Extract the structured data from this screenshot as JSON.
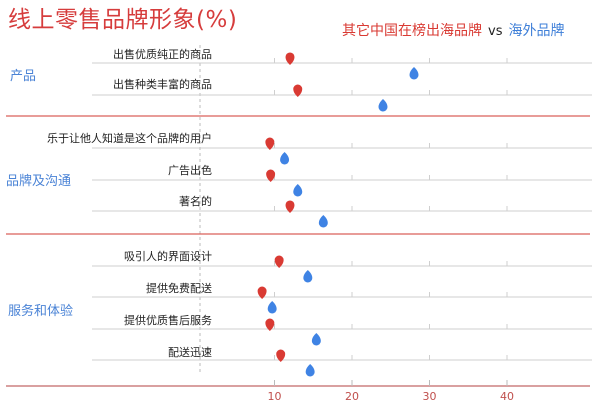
{
  "title": "线上零售品牌形象(%)",
  "legend": {
    "series_a": "其它中国在榜出海品牌",
    "vs": "vs",
    "series_b": "海外品牌"
  },
  "colors": {
    "series_a": "#d93a33",
    "series_b": "#3f83e4",
    "category_label": "#4a83d6",
    "section_line": "#d9605a",
    "grid": "#cfcfcf",
    "axis": "#d9a0a0",
    "tick_label": "#c0504d"
  },
  "categories": [
    {
      "label": "产品",
      "rows": [
        0,
        1
      ]
    },
    {
      "label": "品牌及沟通",
      "rows": [
        2,
        3,
        4
      ]
    },
    {
      "label": "服务和体验",
      "rows": [
        5,
        6,
        7,
        8
      ]
    }
  ],
  "chart_data": {
    "type": "scatter",
    "title": "线上零售品牌形象(%)",
    "categories": [
      "出售优质纯正的商品",
      "出售种类丰富的商品",
      "乐于让他人知道是这个品牌的用户",
      "广告出色",
      "著名的",
      "吸引人的界面设计",
      "提供免费配送",
      "提供优质售后服务",
      "配送迅速"
    ],
    "groups": [
      {
        "name": "产品",
        "categories": [
          "出售优质纯正的商品",
          "出售种类丰富的商品"
        ]
      },
      {
        "name": "品牌及沟通",
        "categories": [
          "乐于让他人知道是这个品牌的用户",
          "广告出色",
          "著名的"
        ]
      },
      {
        "name": "服务和体验",
        "categories": [
          "吸引人的界面设计",
          "提供免费配送",
          "提供优质售后服务",
          "配送迅速"
        ]
      }
    ],
    "series": [
      {
        "name": "其它中国在榜出海品牌",
        "color": "#d93a33",
        "values": [
          12,
          13,
          9.4,
          9.5,
          12,
          10.6,
          8.4,
          9.4,
          10.8
        ]
      },
      {
        "name": "海外品牌",
        "color": "#3f83e4",
        "values": [
          28,
          24,
          11.3,
          13,
          16.3,
          14.3,
          9.7,
          15.4,
          14.6
        ]
      }
    ],
    "xlabel": "",
    "ylabel": "",
    "xticks": [
      10,
      20,
      30,
      40
    ],
    "xlim": [
      0,
      50
    ],
    "grid": true,
    "legend_position": "top-right"
  }
}
